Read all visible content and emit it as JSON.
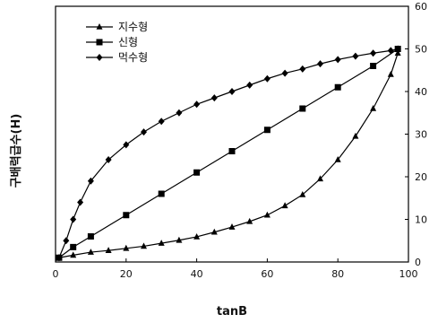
{
  "chart_data": {
    "type": "line",
    "xlabel": "tanB",
    "ylabel": "구배력급수(H)",
    "xlim": [
      0,
      100
    ],
    "ylim": [
      0,
      60
    ],
    "x_ticks": [
      "0",
      "20",
      "40",
      "60",
      "80",
      "100"
    ],
    "y_ticks": [
      "0",
      "10",
      "20",
      "30",
      "40",
      "50",
      "60"
    ],
    "y_axis_side": "right",
    "legend_position": "top-left",
    "grid": false,
    "series": [
      {
        "name": "지수형",
        "marker": "triangle",
        "color": "#000000",
        "x": [
          1,
          5,
          10,
          15,
          20,
          25,
          30,
          35,
          40,
          45,
          50,
          55,
          60,
          65,
          70,
          75,
          80,
          85,
          90,
          95,
          97
        ],
        "y": [
          1,
          1.6,
          2.3,
          2.7,
          3.2,
          3.7,
          4.4,
          5.1,
          5.9,
          7.0,
          8.2,
          9.5,
          11.0,
          13.2,
          15.8,
          19.5,
          24.0,
          29.5,
          36.0,
          44.0,
          49.0
        ]
      },
      {
        "name": "신형",
        "marker": "square",
        "color": "#000000",
        "x": [
          1,
          5,
          10,
          20,
          30,
          40,
          50,
          60,
          70,
          80,
          90,
          97
        ],
        "y": [
          1,
          3.5,
          6.0,
          11.0,
          16.0,
          21.0,
          26.0,
          31.0,
          36.0,
          41.0,
          46.0,
          50.0
        ]
      },
      {
        "name": "먹수형",
        "marker": "diamond",
        "color": "#000000",
        "x": [
          1,
          3,
          5,
          7,
          10,
          15,
          20,
          25,
          30,
          35,
          40,
          45,
          50,
          55,
          60,
          65,
          70,
          75,
          80,
          85,
          90,
          95,
          97
        ],
        "y": [
          1,
          5,
          10,
          14,
          19,
          24,
          27.5,
          30.5,
          33,
          35,
          37,
          38.5,
          40,
          41.5,
          43,
          44.3,
          45.3,
          46.5,
          47.5,
          48.3,
          49,
          49.6,
          50
        ]
      }
    ]
  }
}
